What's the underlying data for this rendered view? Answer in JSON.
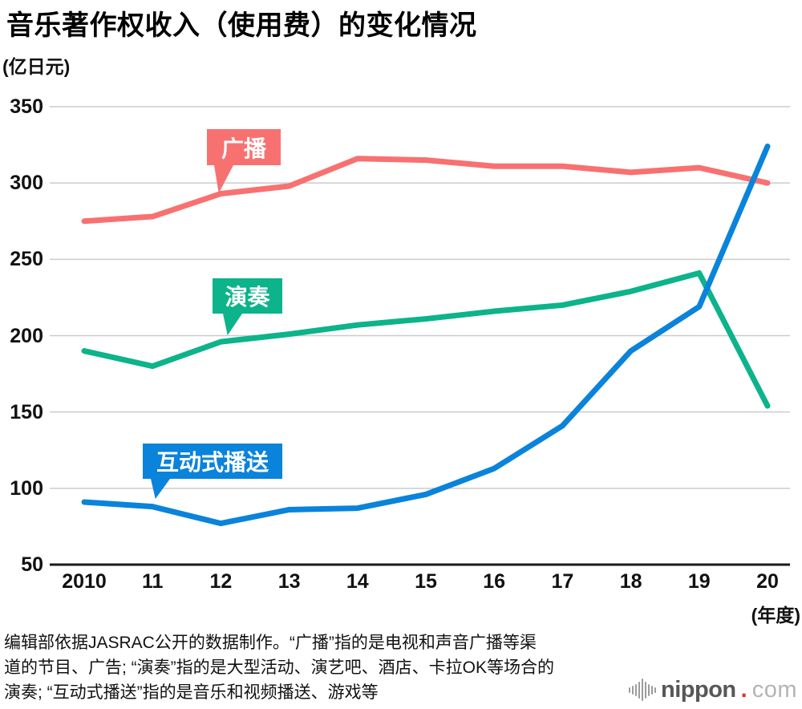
{
  "title": "音乐著作权收入（使用费）的变化情况",
  "chart_data": {
    "type": "line",
    "categories": [
      "2010",
      "11",
      "12",
      "13",
      "14",
      "15",
      "16",
      "17",
      "18",
      "19",
      "20"
    ],
    "series": [
      {
        "name": "广播",
        "color": "#f87171",
        "values": [
          275,
          278,
          293,
          298,
          316,
          315,
          311,
          311,
          307,
          310,
          300
        ]
      },
      {
        "name": "演奏",
        "color": "#0db38a",
        "values": [
          190,
          180,
          196,
          201,
          207,
          211,
          216,
          220,
          229,
          241,
          154
        ]
      },
      {
        "name": "互动式播送",
        "color": "#0a83db",
        "values": [
          91,
          88,
          77,
          86,
          87,
          96,
          113,
          141,
          190,
          219,
          324
        ]
      }
    ],
    "ylabel": "(亿日元)",
    "xlabel": "(年度)",
    "ylim": [
      50,
      350
    ],
    "yticks": [
      50,
      100,
      150,
      200,
      250,
      300,
      350
    ],
    "grid": true,
    "grid_color": "#cbcbcb",
    "axis_color": "#1a1a1a",
    "legend_position": "inline-callouts"
  },
  "footer": {
    "line1": "编辑部依据JASRAC公开的数据制作。“广播”指的是电视和声音广播等渠",
    "line2": "道的节目、广告; “演奏”指的是大型活动、演艺吧、酒店、卡拉OK等场合的",
    "line3": "演奏; “互动式播送”指的是音乐和视频播送、游戏等"
  },
  "logo": {
    "main": "nippon",
    "dot": ".",
    "suffix": "com"
  }
}
